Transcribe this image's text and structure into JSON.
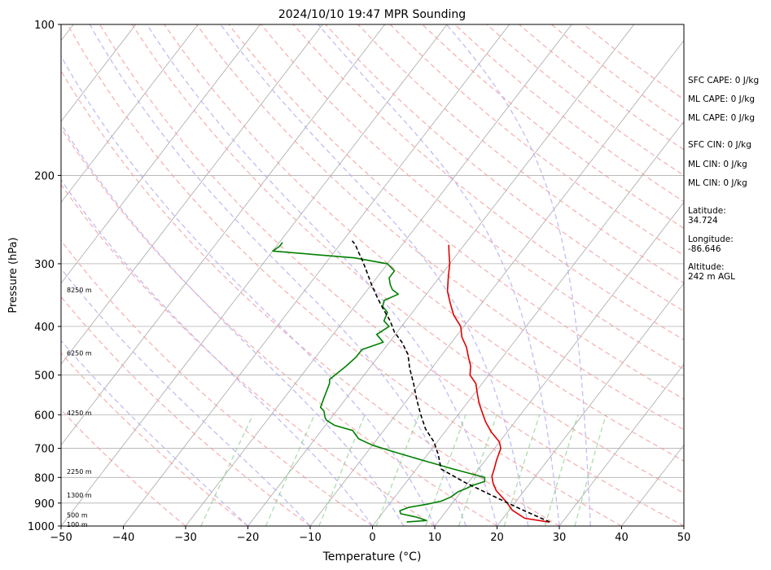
{
  "chart_data": {
    "type": "line",
    "title": "2024/10/10 19:47 MPR Sounding",
    "xlabel": "Temperature (°C)",
    "ylabel": "Pressure (hPa)",
    "xlim": [
      -50,
      50
    ],
    "ylim": [
      1000,
      100
    ],
    "y_scale": "log",
    "x_ticks": [
      "−50",
      "−40",
      "−30",
      "−20",
      "−10",
      "0",
      "10",
      "20",
      "30",
      "40",
      "50"
    ],
    "y_ticks": [
      100,
      200,
      300,
      400,
      500,
      600,
      700,
      800,
      900,
      1000
    ],
    "grid": true,
    "height_labels": [
      {
        "text": "100 m",
        "p": 993
      },
      {
        "text": "500 m",
        "p": 950
      },
      {
        "text": "1300 m",
        "p": 868
      },
      {
        "text": "2250 m",
        "p": 778
      },
      {
        "text": "4250 m",
        "p": 595
      },
      {
        "text": "6250 m",
        "p": 452
      },
      {
        "text": "8250 m",
        "p": 338
      }
    ],
    "series": [
      {
        "role": "temperature",
        "color": "#e00000",
        "points": [
          [
            27.8,
            982
          ],
          [
            23.5,
            965
          ],
          [
            20.5,
            930
          ],
          [
            18.5,
            895
          ],
          [
            15.5,
            850
          ],
          [
            14,
            820
          ],
          [
            13,
            795
          ],
          [
            12.5,
            770
          ],
          [
            11.8,
            740
          ],
          [
            11,
            700
          ],
          [
            10,
            680
          ],
          [
            7.5,
            650
          ],
          [
            5.3,
            620
          ],
          [
            4,
            600
          ],
          [
            2,
            570
          ],
          [
            0.5,
            545
          ],
          [
            -1,
            520
          ],
          [
            -3,
            500
          ],
          [
            -4,
            480
          ],
          [
            -5.5,
            460
          ],
          [
            -7,
            440
          ],
          [
            -9,
            420
          ],
          [
            -10.5,
            400
          ],
          [
            -13,
            380
          ],
          [
            -15,
            360
          ],
          [
            -17,
            340
          ],
          [
            -18.5,
            320
          ],
          [
            -20,
            300
          ],
          [
            -21.5,
            285
          ],
          [
            -22.5,
            275
          ]
        ]
      },
      {
        "role": "dewpoint",
        "color": "#008000",
        "points": [
          [
            5,
            982
          ],
          [
            8,
            975
          ],
          [
            6,
            960
          ],
          [
            3,
            945
          ],
          [
            2.5,
            932
          ],
          [
            3.5,
            918
          ],
          [
            6,
            905
          ],
          [
            8,
            892
          ],
          [
            9,
            875
          ],
          [
            9.5,
            855
          ],
          [
            10.5,
            840
          ],
          [
            11,
            830
          ],
          [
            12.5,
            815
          ],
          [
            12,
            800
          ],
          [
            10,
            790
          ],
          [
            6,
            770
          ],
          [
            0,
            740
          ],
          [
            -6,
            710
          ],
          [
            -10,
            690
          ],
          [
            -13,
            670
          ],
          [
            -15,
            645
          ],
          [
            -18.5,
            630
          ],
          [
            -20.5,
            615
          ],
          [
            -21,
            608
          ],
          [
            -22,
            590
          ],
          [
            -23,
            580
          ],
          [
            -23.5,
            560
          ],
          [
            -24,
            540
          ],
          [
            -24.5,
            520
          ],
          [
            -25,
            510
          ],
          [
            -24.5,
            495
          ],
          [
            -24,
            480
          ],
          [
            -23.5,
            460
          ],
          [
            -23.5,
            445
          ],
          [
            -21,
            430
          ],
          [
            -23,
            415
          ],
          [
            -22,
            400
          ],
          [
            -23.5,
            390
          ],
          [
            -24,
            375
          ],
          [
            -25.5,
            365
          ],
          [
            -26,
            355
          ],
          [
            -24.5,
            345
          ],
          [
            -26,
            338
          ],
          [
            -27,
            330
          ],
          [
            -28,
            320
          ],
          [
            -28,
            310
          ],
          [
            -30,
            300
          ],
          [
            -36,
            292
          ],
          [
            -50,
            283
          ],
          [
            -49.5,
            277
          ],
          [
            -49.5,
            272
          ]
        ]
      },
      {
        "role": "parcel-profile",
        "color": "#000000",
        "style": "dashed",
        "points": [
          [
            28,
            982
          ],
          [
            22,
            928
          ],
          [
            15.5,
            870
          ],
          [
            9.4,
            818
          ],
          [
            4,
            770
          ],
          [
            1.7,
            720
          ],
          [
            -0.5,
            680
          ],
          [
            -3.5,
            640
          ],
          [
            -6,
            600
          ],
          [
            -8.5,
            560
          ],
          [
            -11,
            520
          ],
          [
            -13.5,
            485
          ],
          [
            -15.5,
            455
          ],
          [
            -18,
            430
          ],
          [
            -20.5,
            410
          ],
          [
            -22.5,
            390
          ],
          [
            -25,
            370
          ],
          [
            -27.5,
            350
          ],
          [
            -30,
            330
          ],
          [
            -32.5,
            310
          ],
          [
            -34.5,
            295
          ],
          [
            -36,
            285
          ],
          [
            -37.5,
            275
          ],
          [
            -38.5,
            270
          ]
        ]
      }
    ]
  },
  "stats": [
    {
      "label": "SFC CAPE: 0 J/kg"
    },
    {
      "label": "ML CAPE: 0 J/kg"
    },
    {
      "label": "ML CAPE: 0 J/kg"
    },
    {
      "label": "SFC CIN: 0 J/kg"
    },
    {
      "label": "ML CIN: 0 J/kg"
    },
    {
      "label": "ML CIN: 0 J/kg"
    },
    {
      "label": "Latitude:\n34.724"
    },
    {
      "label": "Longitude:\n-86.646"
    },
    {
      "label": "Altitude:\n242 m AGL"
    }
  ]
}
